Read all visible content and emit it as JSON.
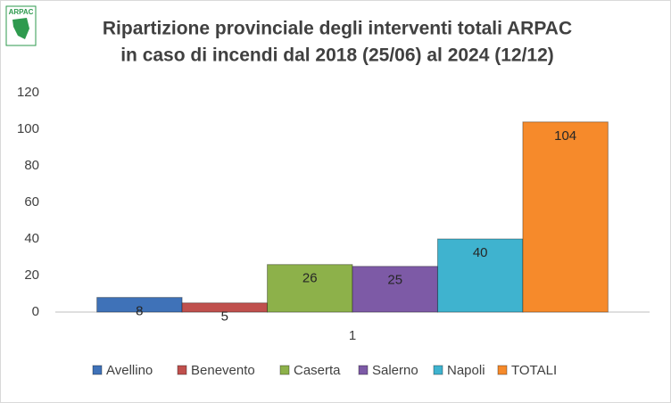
{
  "logo": "ARPAC",
  "chart_data": {
    "type": "bar",
    "title": [
      "Ripartizione provinciale degli interventi totali ARPAC",
      "in caso di incendi dal 2018 (25/06) al 2024 (12/12)"
    ],
    "categories": [
      "1"
    ],
    "series": [
      {
        "name": "Avellino",
        "color": "#3f72b8",
        "values": [
          8
        ]
      },
      {
        "name": "Benevento",
        "color": "#c0504d",
        "values": [
          5
        ]
      },
      {
        "name": "Caserta",
        "color": "#8db14a",
        "values": [
          26
        ]
      },
      {
        "name": "Salerno",
        "color": "#7d5aa6",
        "values": [
          25
        ]
      },
      {
        "name": "Napoli",
        "color": "#3fb3cf",
        "values": [
          40
        ]
      },
      {
        "name": "TOTALI",
        "color": "#f68a2b",
        "values": [
          104
        ]
      }
    ],
    "ylim": [
      0,
      120
    ],
    "yticks": [
      0,
      20,
      40,
      60,
      80,
      100,
      120
    ],
    "grid": false,
    "legend": "bottom"
  }
}
